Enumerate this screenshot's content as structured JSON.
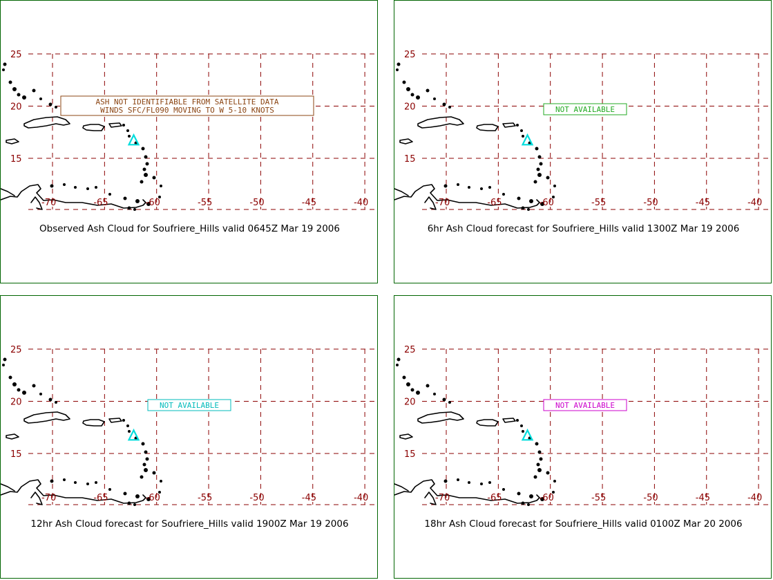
{
  "map": {
    "lon_ticks": [
      "-70",
      "-65",
      "-60",
      "-55",
      "-50",
      "-45",
      "-40"
    ],
    "lat_ticks": [
      "25",
      "20",
      "15"
    ],
    "volcano_marker": {
      "name": "triangle-icon",
      "color": "#00dddd",
      "lon": -62.2,
      "lat": 16.7
    },
    "grid_color": "#8b0000",
    "coast_color": "#000000",
    "border_color": "#006400"
  },
  "panels": [
    {
      "caption": "Observed Ash Cloud for Soufriere_Hills valid 0645Z Mar 19 2006",
      "annotation": [
        "ASH NOT IDENTIFIABLE FROM SATELLITE DATA",
        "WINDS SFC/FL090 MOVING TO W 5-10 KNOTS"
      ],
      "annotation_color": "#8b4513"
    },
    {
      "caption": "6hr Ash Cloud forecast for Soufriere_Hills valid 1300Z Mar 19 2006",
      "annotation": [
        "NOT AVAILABLE"
      ],
      "annotation_color": "#22aa22"
    },
    {
      "caption": "12hr Ash Cloud forecast for Soufriere_Hills valid 1900Z Mar 19 2006",
      "annotation": [
        "NOT AVAILABLE"
      ],
      "annotation_color": "#00bbbb"
    },
    {
      "caption": "18hr Ash Cloud forecast for Soufriere_Hills valid 0100Z Mar 20 2006",
      "annotation": [
        "NOT AVAILABLE"
      ],
      "annotation_color": "#cc00cc"
    }
  ]
}
